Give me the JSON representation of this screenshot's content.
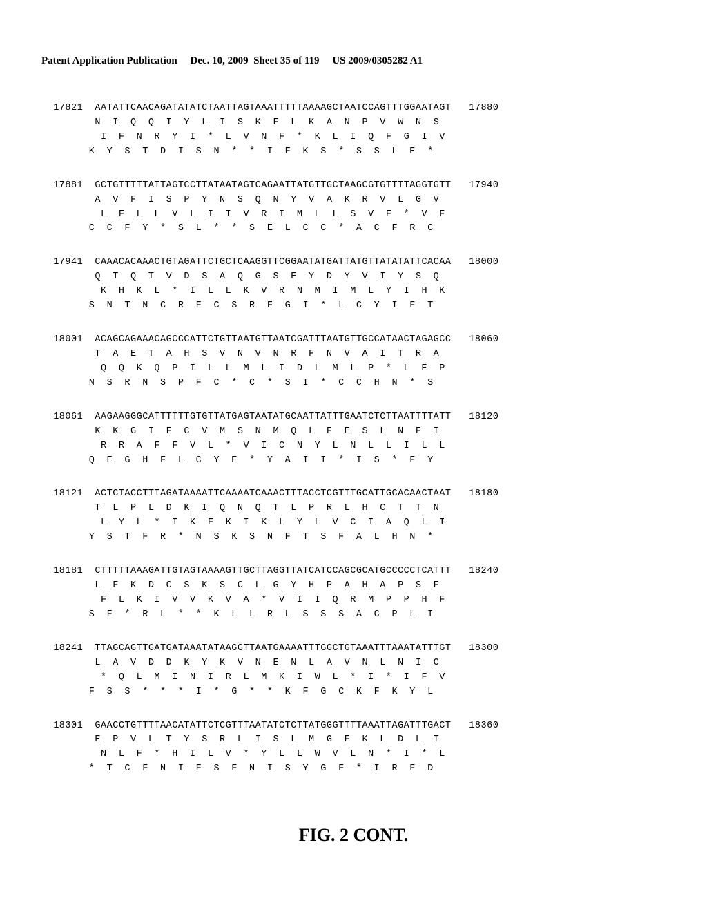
{
  "header": {
    "left": "Patent Application Publication",
    "center": "Dec. 10, 2009  Sheet 35 of 119",
    "right": "US 2009/0305282 A1"
  },
  "figure_label": "FIG. 2 CONT.",
  "layout": {
    "left_col_chars": 7,
    "seq_chars": 60,
    "right_col_chars": 6,
    "indent_frame1": 9,
    "indent_frame2": 10,
    "indent_frame3": 8
  },
  "blocks": [
    {
      "start": "17821",
      "end": "17880",
      "dna": "AATATTCAACAGATATATCTAATTAGTAAATTTTTAAAAGCTAATCCAGTTTGGAATAGT",
      "frame1": "N  I  Q  Q  I  Y  L  I  S  K  F  L  K  A  N  P  V  W  N  S",
      "frame2": "I  F  N  R  Y  I  *  L  V  N  F  *  K  L  I  Q  F  G  I  V",
      "frame3": "K  Y  S  T  D  I  S  N  *  *  I  F  K  S  *  S  S  L  E  *"
    },
    {
      "start": "17881",
      "end": "17940",
      "dna": "GCTGTTTTTATTAGTCCTTATAATAGTCAGAATTATGTTGCTAAGCGTGTTTTAGGTGTT",
      "frame1": "A  V  F  I  S  P  Y  N  S  Q  N  Y  V  A  K  R  V  L  G  V",
      "frame2": "L  F  L  L  V  L  I  I  V  R  I  M  L  L  S  V  F  *  V  F",
      "frame3": "C  C  F  Y  *  S  L  *  *  S  E  L  C  C  *  A  C  F  R  C"
    },
    {
      "start": "17941",
      "end": "18000",
      "dna": "CAAACACAAACTGTAGATTCTGCTCAAGGTTCGGAATATGATTATGTTATATATTCACAA",
      "frame1": "Q  T  Q  T  V  D  S  A  Q  G  S  E  Y  D  Y  V  I  Y  S  Q",
      "frame2": "K  H  K  L  *  I  L  L  K  V  R  N  M  I  M  L  Y  I  H  K",
      "frame3": "S  N  T  N  C  R  F  C  S  R  F  G  I  *  L  C  Y  I  F  T"
    },
    {
      "start": "18001",
      "end": "18060",
      "dna": "ACAGCAGAAACAGCCCATTCTGTTAATGTTAATCGATTTAATGTTGCCATAACTAGAGCC",
      "frame1": "T  A  E  T  A  H  S  V  N  V  N  R  F  N  V  A  I  T  R  A",
      "frame2": "Q  Q  K  Q  P  I  L  L  M  L  I  D  L  M  L  P  *  L  E  P",
      "frame3": "N  S  R  N  S  P  F  C  *  C  *  S  I  *  C  C  H  N  *  S"
    },
    {
      "start": "18061",
      "end": "18120",
      "dna": "AAGAAGGGCATTTTTTGTGTTATGAGTAATATGCAATTATTTGAATCTCTTAATTTTATT",
      "frame1": "K  K  G  I  F  C  V  M  S  N  M  Q  L  F  E  S  L  N  F  I",
      "frame2": "R  R  A  F  F  V  L  *  V  I  C  N  Y  L  N  L  L  I  L  L",
      "frame3": "Q  E  G  H  F  L  C  Y  E  *  Y  A  I  I  *  I  S  *  F  Y"
    },
    {
      "start": "18121",
      "end": "18180",
      "dna": "ACTCTACCTTTAGATAAAATTCAAAATCAAACTTTACCTCGTTTGCATTGCACAACTAAT",
      "frame1": "T  L  P  L  D  K  I  Q  N  Q  T  L  P  R  L  H  C  T  T  N",
      "frame2": "L  Y  L  *  I  K  F  K  I  K  L  Y  L  V  C  I  A  Q  L  I",
      "frame3": "Y  S  T  F  R  *  N  S  K  S  N  F  T  S  F  A  L  H  N  *"
    },
    {
      "start": "18181",
      "end": "18240",
      "dna": "CTTTTTAAAGATTGTAGTAAAAGTTGCTTAGGTTATCATCCAGCGCATGCCCCCTCATTT",
      "frame1": "L  F  K  D  C  S  K  S  C  L  G  Y  H  P  A  H  A  P  S  F",
      "frame2": "F  L  K  I  V  V  K  V  A  *  V  I  I  Q  R  M  P  P  H  F",
      "frame3": "S  F  *  R  L  *  *  K  L  L  R  L  S  S  S  A  C  P  L  I"
    },
    {
      "start": "18241",
      "end": "18300",
      "dna": "TTAGCAGTTGATGATAAATATAAGGTTAATGAAAATTTGGCTGTAAATTTAAATATTTGT",
      "frame1": "L  A  V  D  D  K  Y  K  V  N  E  N  L  A  V  N  L  N  I  C",
      "frame2": "*  Q  L  M  I  N  I  R  L  M  K  I  W  L  *  I  *  I  F  V",
      "frame3": "F  S  S  *  *  *  I  *  G  *  *  K  F  G  C  K  F  K  Y  L"
    },
    {
      "start": "18301",
      "end": "18360",
      "dna": "GAACCTGTTTTAACATATTCTCGTTTAATATCTCTTATGGGTTTTAAATTAGATTTGACT",
      "frame1": "E  P  V  L  T  Y  S  R  L  I  S  L  M  G  F  K  L  D  L  T",
      "frame2": "N  L  F  *  H  I  L  V  *  Y  L  L  W  V  L  N  *  I  *  L",
      "frame3": "*  T  C  F  N  I  F  S  F  N  I  S  Y  G  F  *  I  R  F  D"
    }
  ]
}
